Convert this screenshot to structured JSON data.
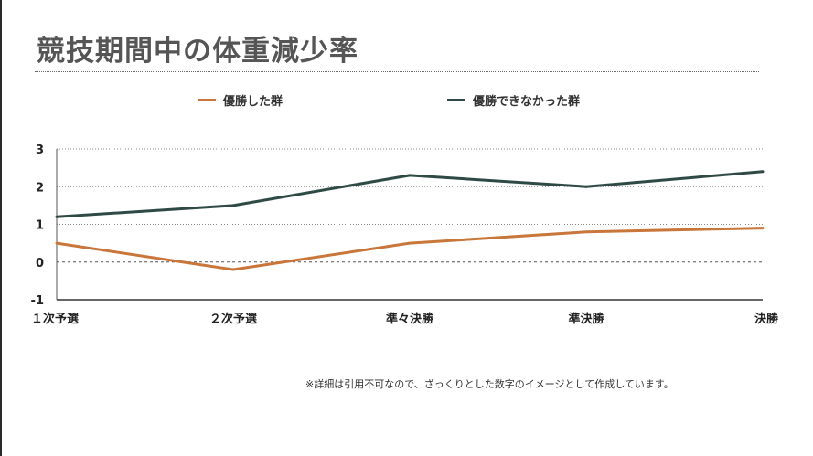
{
  "title": "競技期間中の体重減少率",
  "footnote": "※詳細は引用不可なので、ざっくりとした数字のイメージとして作成しています。",
  "colors": {
    "winners": "#c8763a",
    "non_winners": "#2f4a45",
    "title": "#555555"
  },
  "chart_data": {
    "type": "line",
    "title": "競技期間中の体重減少率",
    "xlabel": "",
    "ylabel": "",
    "categories": [
      "１次予選",
      "２次予選",
      "準々決勝",
      "準決勝",
      "決勝"
    ],
    "yticks": [
      "-1",
      "0",
      "1",
      "2",
      "3"
    ],
    "ylim": [
      -1,
      3
    ],
    "grid": true,
    "legend_position": "top",
    "series": [
      {
        "name": "優勝した群",
        "values": [
          0.5,
          -0.2,
          0.5,
          0.8,
          0.9
        ],
        "color": "#c8763a"
      },
      {
        "name": "優勝できなかった群",
        "values": [
          1.2,
          1.5,
          2.3,
          2.0,
          2.4
        ],
        "color": "#2f4a45"
      }
    ]
  }
}
